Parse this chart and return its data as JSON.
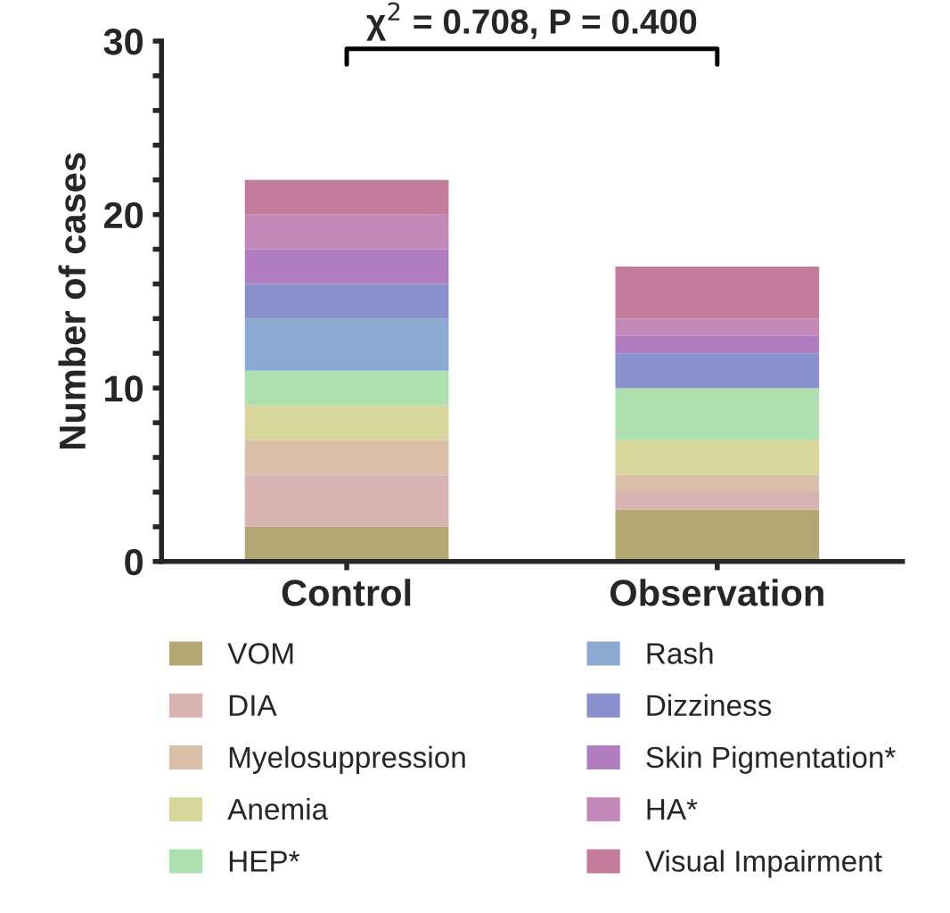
{
  "chart_data": {
    "type": "bar",
    "stacked": true,
    "ylabel": "Number of cases",
    "categories": [
      "Control",
      "Observation"
    ],
    "series": [
      {
        "name": "VOM",
        "color": "#b3a874",
        "values": [
          2,
          3
        ]
      },
      {
        "name": "DIA",
        "color": "#d9b2b2",
        "values": [
          3,
          1
        ]
      },
      {
        "name": "Myelosuppression",
        "color": "#dabfa8",
        "values": [
          2,
          1
        ]
      },
      {
        "name": "Anemia",
        "color": "#d8d69b",
        "values": [
          2,
          2
        ]
      },
      {
        "name": "HEP*",
        "color": "#aedfae",
        "values": [
          2,
          3
        ]
      },
      {
        "name": "Rash",
        "color": "#8aaad2",
        "values": [
          3,
          0
        ]
      },
      {
        "name": "Dizziness",
        "color": "#8a90cd",
        "values": [
          2,
          2
        ]
      },
      {
        "name": "Skin Pigmentation*",
        "color": "#b07ec0",
        "values": [
          2,
          1
        ]
      },
      {
        "name": "HA*",
        "color": "#c289b8",
        "values": [
          2,
          1
        ]
      },
      {
        "name": "Visual Impairment",
        "color": "#c47c9c",
        "values": [
          2,
          3
        ]
      }
    ],
    "ylim": [
      0,
      30
    ],
    "yticks": [
      0,
      {
        "value": 2,
        "label": null
      },
      {
        "value": 4,
        "label": null
      },
      {
        "value": 6,
        "label": null
      },
      {
        "value": 8,
        "label": null
      },
      10,
      {
        "value": 12,
        "label": null
      },
      {
        "value": 14,
        "label": null
      },
      {
        "value": 16,
        "label": null
      },
      {
        "value": 18,
        "label": null
      },
      20,
      {
        "value": 22,
        "label": null
      },
      {
        "value": 24,
        "label": null
      },
      {
        "value": 26,
        "label": null
      },
      {
        "value": 28,
        "label": null
      },
      30
    ],
    "annotations": [
      "χ$^{2}$ = 0.708, P = 0.400"
    ],
    "grid": false,
    "legend": "bottom"
  }
}
